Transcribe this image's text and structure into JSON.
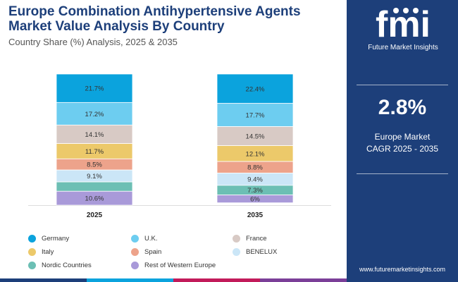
{
  "header": {
    "title": "Europe Combination Antihypertensive Agents Market Value Analysis By Country",
    "subtitle": "Country Share (%) Analysis, 2025 & 2035"
  },
  "chart_data": {
    "type": "bar",
    "stacked": true,
    "categories": [
      "2025",
      "2035"
    ],
    "series": [
      {
        "name": "Germany",
        "color": "#0ba3dd",
        "values": [
          21.7,
          22.4
        ]
      },
      {
        "name": "U.K.",
        "color": "#6dcdf0",
        "values": [
          17.2,
          17.7
        ]
      },
      {
        "name": "France",
        "color": "#d8cac5",
        "values": [
          14.1,
          14.5
        ]
      },
      {
        "name": "Italy",
        "color": "#ecc96a",
        "values": [
          11.7,
          12.1
        ]
      },
      {
        "name": "Spain",
        "color": "#eda38b",
        "values": [
          8.5,
          8.8
        ]
      },
      {
        "name": "BENELUX",
        "color": "#cbe6f7",
        "values": [
          9.1,
          9.4
        ]
      },
      {
        "name": "Nordic Countries",
        "color": "#6cbfb4",
        "values": [
          7.1,
          7.3
        ]
      },
      {
        "name": "Rest of Western Europe",
        "color": "#a99ad9",
        "values": [
          10.6,
          6
        ]
      }
    ],
    "value_labels": [
      [
        "21.7%",
        "17.2%",
        "14.1%",
        "11.7%",
        "8.5%",
        "9.1%",
        "",
        "10.6%"
      ],
      [
        "22.4%",
        "17.7%",
        "14.5%",
        "12.1%",
        "8.8%",
        "9.4%",
        "7.3%",
        "6%"
      ]
    ],
    "ylim": [
      0,
      100
    ],
    "grid": false,
    "legend_position": "bottom"
  },
  "sidebar": {
    "logo_text": "fmi",
    "brand": "Future Market Insights",
    "cagr_value": "2.8%",
    "cagr_label_line1": "Europe Market",
    "cagr_label_line2": "CAGR 2025 - 2035",
    "url": "www.futuremarketinsights.com"
  },
  "footer_stripes": [
    "#1d3f7a",
    "#0ba3dd",
    "#c21b5a",
    "#7b3f98"
  ]
}
